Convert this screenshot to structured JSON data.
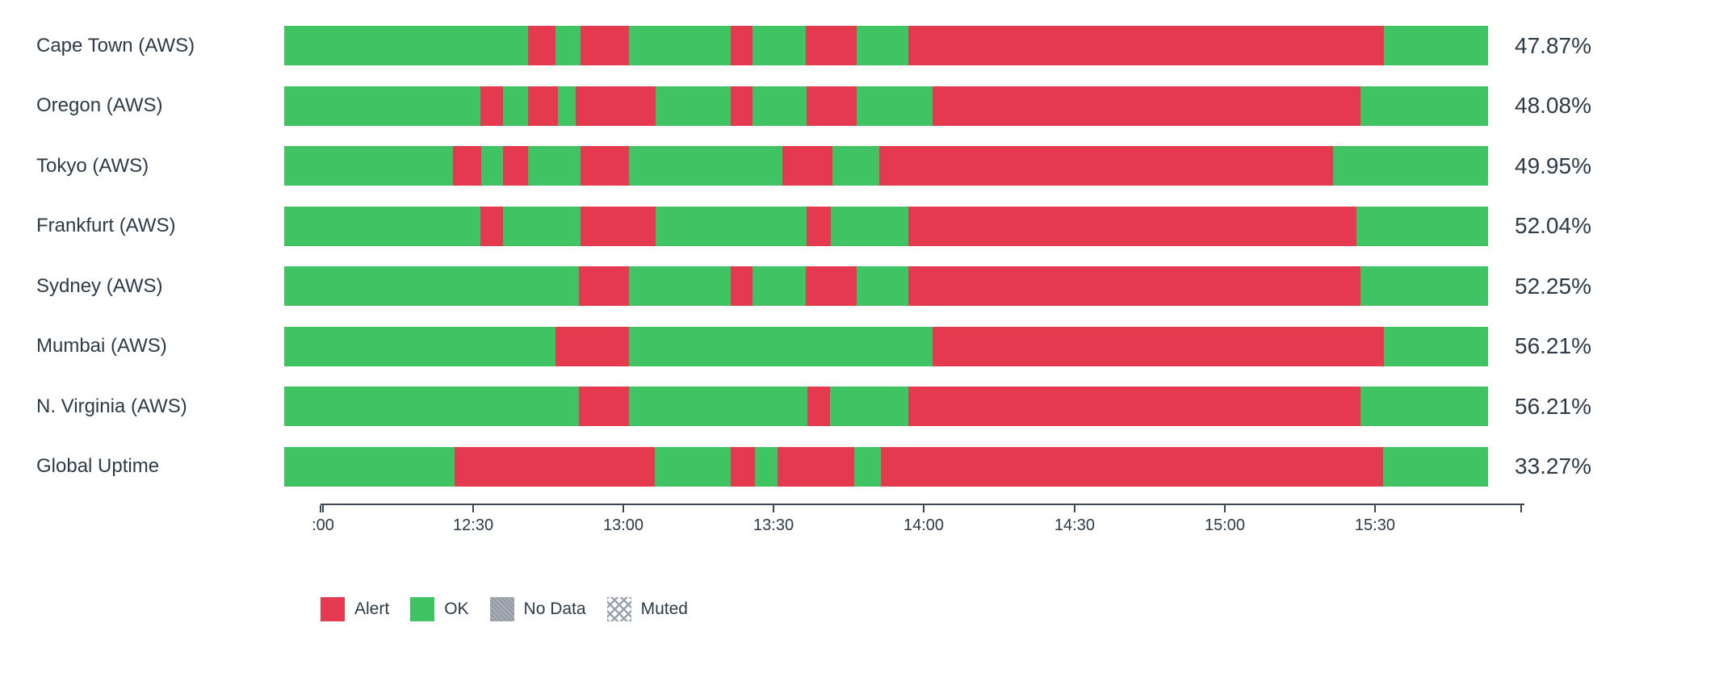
{
  "colors": {
    "ok": "#40c363",
    "alert": "#e5394f",
    "no_data": "#949ca7",
    "muted_hatch": "#9aa3ac",
    "text": "#2d3b47",
    "axis": "#3c4754"
  },
  "chart_data": {
    "type": "status-timeline-bar",
    "title": "",
    "xlabel": "",
    "ylabel": "",
    "time_axis": {
      "start": "12:00",
      "end": "16:00",
      "ticks": [
        {
          "label": "",
          "pos": 0
        },
        {
          "label": ":00",
          "pos": 0.2
        },
        {
          "label": "12:30",
          "pos": 12.68
        },
        {
          "label": "13:00",
          "pos": 25.15
        },
        {
          "label": "13:30",
          "pos": 37.63
        },
        {
          "label": "14:00",
          "pos": 50.1
        },
        {
          "label": "14:30",
          "pos": 62.64
        },
        {
          "label": "15:00",
          "pos": 75.12
        },
        {
          "label": "15:30",
          "pos": 87.59
        },
        {
          "label": "",
          "pos": 99.73
        }
      ]
    },
    "legend": [
      {
        "key": "alert",
        "label": "Alert"
      },
      {
        "key": "ok",
        "label": "OK"
      },
      {
        "key": "no-data",
        "label": "No Data"
      },
      {
        "key": "muted",
        "label": "Muted"
      }
    ],
    "rows": [
      {
        "label": "Cape Town (AWS)",
        "value": "47.87%",
        "segments": [
          {
            "status": "ok",
            "pct": 20.25
          },
          {
            "status": "alert",
            "pct": 2.28
          },
          {
            "status": "ok",
            "pct": 2.08
          },
          {
            "status": "alert",
            "pct": 4.02
          },
          {
            "status": "ok",
            "pct": 8.45
          },
          {
            "status": "alert",
            "pct": 1.81
          },
          {
            "status": "ok",
            "pct": 4.43
          },
          {
            "status": "alert",
            "pct": 4.16
          },
          {
            "status": "ok",
            "pct": 4.29
          },
          {
            "status": "alert",
            "pct": 39.5
          },
          {
            "status": "ok",
            "pct": 8.65
          }
        ]
      },
      {
        "label": "Oregon (AWS)",
        "value": "48.08%",
        "segments": [
          {
            "status": "ok",
            "pct": 16.3
          },
          {
            "status": "alert",
            "pct": 1.88
          },
          {
            "status": "ok",
            "pct": 2.08
          },
          {
            "status": "alert",
            "pct": 2.48
          },
          {
            "status": "ok",
            "pct": 1.48
          },
          {
            "status": "alert",
            "pct": 6.64
          },
          {
            "status": "ok",
            "pct": 6.24
          },
          {
            "status": "alert",
            "pct": 1.81
          },
          {
            "status": "ok",
            "pct": 4.43
          },
          {
            "status": "alert",
            "pct": 4.16
          },
          {
            "status": "ok",
            "pct": 6.3
          },
          {
            "status": "alert",
            "pct": 35.55
          },
          {
            "status": "ok",
            "pct": 10.6
          }
        ]
      },
      {
        "label": "Tokyo (AWS)",
        "value": "49.95%",
        "segments": [
          {
            "status": "ok",
            "pct": 14.02
          },
          {
            "status": "alert",
            "pct": 2.35
          },
          {
            "status": "ok",
            "pct": 1.81
          },
          {
            "status": "alert",
            "pct": 2.08
          },
          {
            "status": "ok",
            "pct": 4.36
          },
          {
            "status": "alert",
            "pct": 4.02
          },
          {
            "status": "ok",
            "pct": 12.74
          },
          {
            "status": "alert",
            "pct": 4.16
          },
          {
            "status": "ok",
            "pct": 3.89
          },
          {
            "status": "alert",
            "pct": 37.63
          },
          {
            "status": "ok",
            "pct": 12.88
          }
        ]
      },
      {
        "label": "Frankfurt (AWS)",
        "value": "52.04%",
        "segments": [
          {
            "status": "ok",
            "pct": 16.3
          },
          {
            "status": "alert",
            "pct": 1.88
          },
          {
            "status": "ok",
            "pct": 6.44
          },
          {
            "status": "alert",
            "pct": 6.24
          },
          {
            "status": "ok",
            "pct": 12.47
          },
          {
            "status": "alert",
            "pct": 2.01
          },
          {
            "status": "ok",
            "pct": 6.44
          },
          {
            "status": "alert",
            "pct": 37.22
          },
          {
            "status": "ok",
            "pct": 10.93
          }
        ]
      },
      {
        "label": "Sydney (AWS)",
        "value": "52.25%",
        "segments": [
          {
            "status": "ok",
            "pct": 24.48
          },
          {
            "status": "alert",
            "pct": 4.16
          },
          {
            "status": "ok",
            "pct": 8.45
          },
          {
            "status": "alert",
            "pct": 1.81
          },
          {
            "status": "ok",
            "pct": 4.43
          },
          {
            "status": "alert",
            "pct": 4.16
          },
          {
            "status": "ok",
            "pct": 4.29
          },
          {
            "status": "alert",
            "pct": 37.56
          },
          {
            "status": "ok",
            "pct": 10.6
          }
        ]
      },
      {
        "label": "Mumbai (AWS)",
        "value": "56.21%",
        "segments": [
          {
            "status": "ok",
            "pct": 22.54
          },
          {
            "status": "alert",
            "pct": 6.1
          },
          {
            "status": "ok",
            "pct": 25.15
          },
          {
            "status": "alert",
            "pct": 37.49
          },
          {
            "status": "ok",
            "pct": 8.65
          }
        ]
      },
      {
        "label": "N. Virginia (AWS)",
        "value": "56.21%",
        "segments": [
          {
            "status": "ok",
            "pct": 24.48
          },
          {
            "status": "alert",
            "pct": 4.16
          },
          {
            "status": "ok",
            "pct": 14.82
          },
          {
            "status": "alert",
            "pct": 1.88
          },
          {
            "status": "ok",
            "pct": 6.44
          },
          {
            "status": "alert",
            "pct": 37.56
          },
          {
            "status": "ok",
            "pct": 10.6
          }
        ]
      },
      {
        "label": "Global Uptime",
        "value": "33.27%",
        "segments": [
          {
            "status": "ok",
            "pct": 14.15
          },
          {
            "status": "alert",
            "pct": 16.63
          },
          {
            "status": "ok",
            "pct": 6.3
          },
          {
            "status": "alert",
            "pct": 2.01
          },
          {
            "status": "ok",
            "pct": 1.88
          },
          {
            "status": "alert",
            "pct": 6.37
          },
          {
            "status": "ok",
            "pct": 2.21
          },
          {
            "status": "alert",
            "pct": 41.72
          },
          {
            "status": "ok",
            "pct": 8.72
          }
        ]
      }
    ]
  }
}
